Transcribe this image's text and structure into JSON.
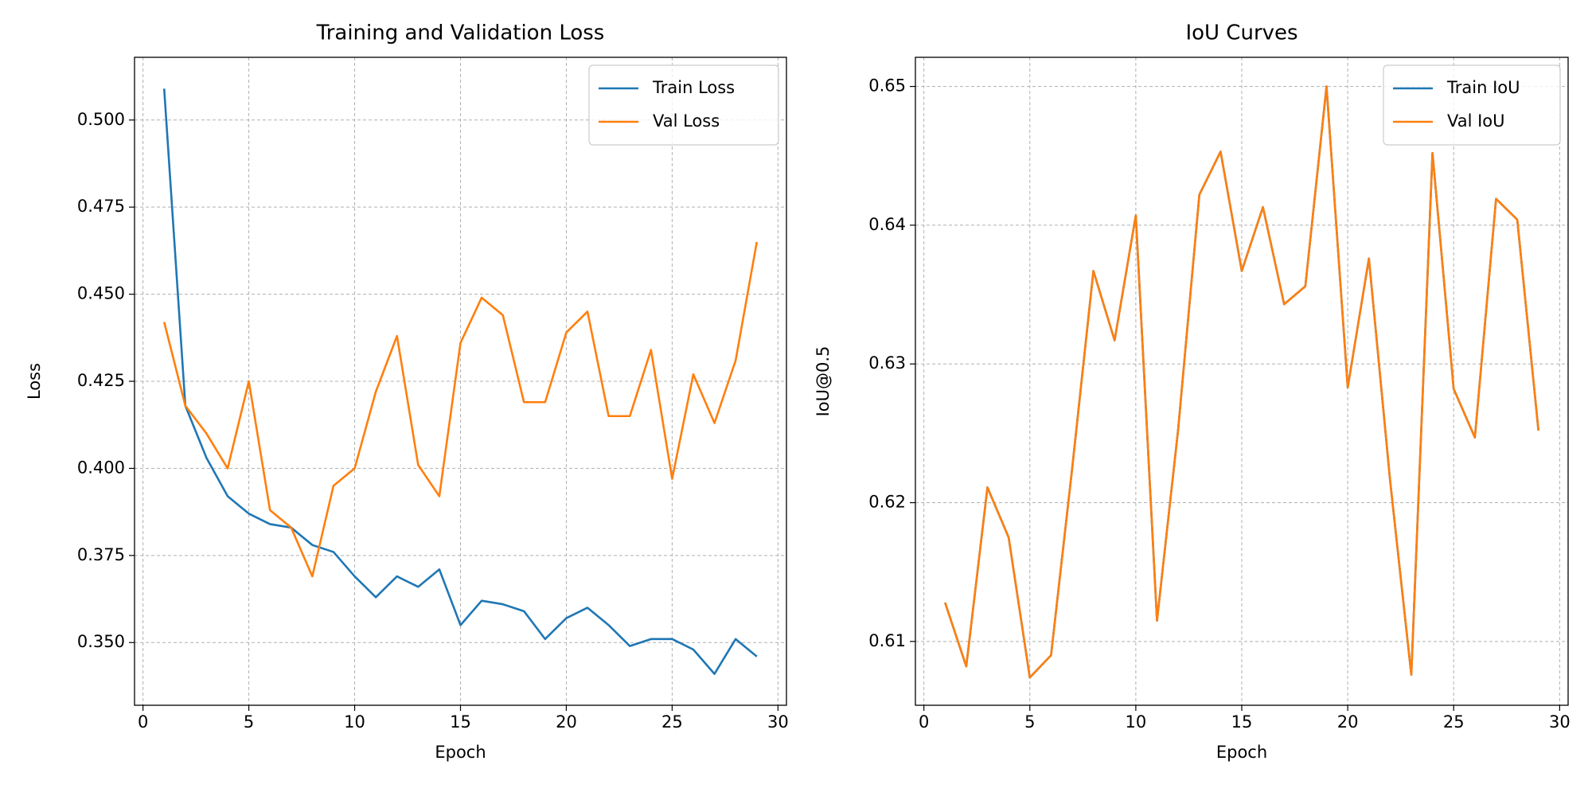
{
  "chart_data": [
    {
      "type": "line",
      "title": "Training and Validation Loss",
      "xlabel": "Epoch",
      "ylabel": "Loss",
      "x": [
        1,
        2,
        3,
        4,
        5,
        6,
        7,
        8,
        9,
        10,
        11,
        12,
        13,
        14,
        15,
        16,
        17,
        18,
        19,
        20,
        21,
        22,
        23,
        24,
        25,
        26,
        27,
        28,
        29
      ],
      "series": [
        {
          "name": "Train Loss",
          "color": "#1f77b4",
          "values": [
            0.509,
            0.418,
            0.403,
            0.392,
            0.387,
            0.384,
            0.383,
            0.378,
            0.376,
            0.369,
            0.363,
            0.369,
            0.366,
            0.371,
            0.355,
            0.362,
            0.361,
            0.359,
            0.351,
            0.357,
            0.36,
            0.355,
            0.349,
            0.351,
            0.351,
            0.348,
            0.341,
            0.351,
            0.346
          ]
        },
        {
          "name": "Val Loss",
          "color": "#ff7f0e",
          "values": [
            0.442,
            0.418,
            0.41,
            0.4,
            0.425,
            0.388,
            0.383,
            0.369,
            0.395,
            0.4,
            0.422,
            0.438,
            0.401,
            0.392,
            0.436,
            0.449,
            0.444,
            0.419,
            0.419,
            0.439,
            0.445,
            0.415,
            0.415,
            0.434,
            0.397,
            0.427,
            0.413,
            0.431,
            0.465
          ]
        }
      ],
      "xlim": [
        -0.4,
        30.4
      ],
      "xticks": [
        0,
        5,
        10,
        15,
        20,
        25,
        30
      ],
      "ylim": [
        0.332,
        0.518
      ],
      "yticks": [
        {
          "value": 0.35,
          "label": "0.350"
        },
        0.375,
        {
          "value": 0.4,
          "label": "0.400"
        },
        0.425,
        {
          "value": 0.45,
          "label": "0.450"
        },
        0.475,
        {
          "value": 0.5,
          "label": "0.500"
        }
      ],
      "grid": true,
      "legend": "upper right"
    },
    {
      "type": "line",
      "title": "IoU Curves",
      "xlabel": "Epoch",
      "ylabel": "IoU@0.5",
      "x": [
        1,
        2,
        3,
        4,
        5,
        6,
        7,
        8,
        9,
        10,
        11,
        12,
        13,
        14,
        15,
        16,
        17,
        18,
        19,
        20,
        21,
        22,
        23,
        24,
        25,
        26,
        27,
        28,
        29
      ],
      "series": [
        {
          "name": "Train IoU",
          "color": "#1f77b4",
          "values": [
            0.6128,
            0.6082,
            0.6211,
            0.6175,
            0.6074,
            0.609,
            0.6225,
            0.6367,
            0.6317,
            0.6407,
            0.6115,
            0.6253,
            0.6422,
            0.6453,
            0.6367,
            0.6413,
            0.6343,
            0.6356,
            0.65,
            0.6283,
            0.6376,
            0.6216,
            0.6076,
            0.6452,
            0.6282,
            0.6247,
            0.6419,
            0.6404,
            0.6252
          ]
        },
        {
          "name": "Val IoU",
          "color": "#ff7f0e",
          "values": [
            0.6128,
            0.6082,
            0.6211,
            0.6175,
            0.6074,
            0.609,
            0.6225,
            0.6367,
            0.6317,
            0.6407,
            0.6115,
            0.6253,
            0.6422,
            0.6453,
            0.6367,
            0.6413,
            0.6343,
            0.6356,
            0.65,
            0.6283,
            0.6376,
            0.6216,
            0.6076,
            0.6452,
            0.6282,
            0.6247,
            0.6419,
            0.6404,
            0.6252
          ]
        }
      ],
      "xlim": [
        -0.4,
        30.4
      ],
      "xticks": [
        0,
        5,
        10,
        15,
        20,
        25,
        30
      ],
      "ylim": [
        0.6054,
        0.6521
      ],
      "yticks": [
        0.61,
        0.62,
        0.63,
        0.64,
        0.65
      ],
      "grid": true,
      "legend": "upper right"
    }
  ]
}
